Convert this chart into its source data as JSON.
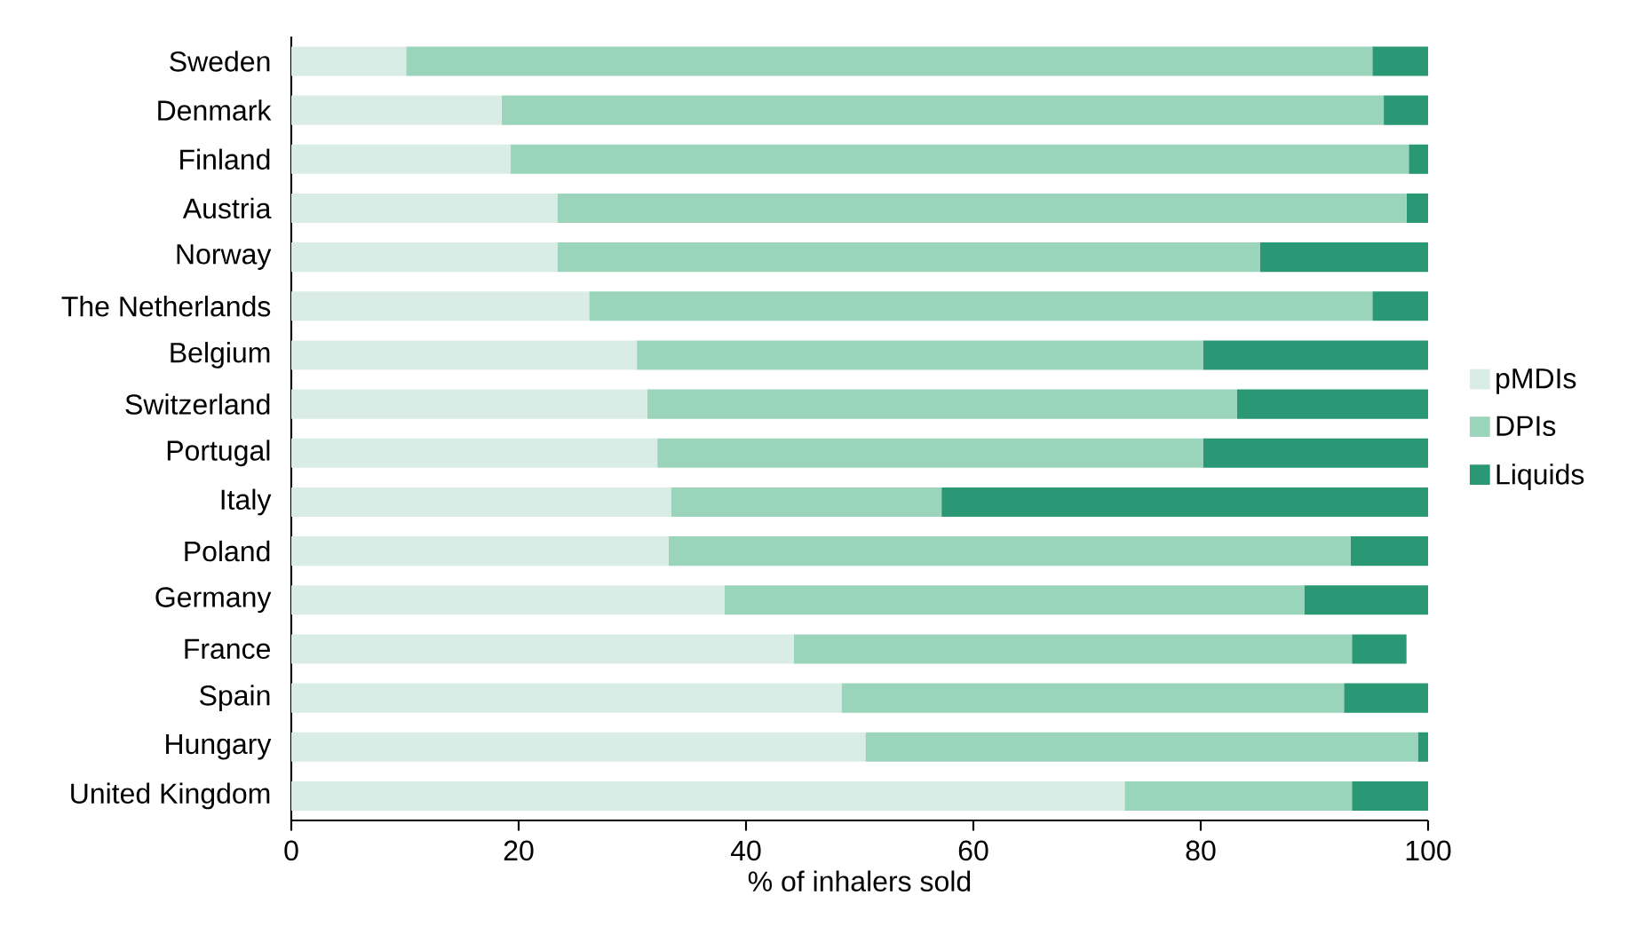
{
  "chart_data": {
    "type": "bar",
    "orientation": "horizontal",
    "stacked": true,
    "xlabel": "% of inhalers sold",
    "categories": [
      "Sweden",
      "Denmark",
      "Finland",
      "Austria",
      "Norway",
      "The Netherlands",
      "Belgium",
      "Switzerland",
      "Portugal",
      "Italy",
      "Poland",
      "Germany",
      "France",
      "Spain",
      "Hungary",
      "United Kingdom"
    ],
    "series": [
      {
        "name": "pMDIs",
        "color": "#d9ede6",
        "values": [
          10.1,
          18.5,
          19.3,
          23.4,
          23.4,
          26.2,
          30.4,
          31.3,
          32.2,
          33.4,
          33.2,
          38.1,
          44.2,
          48.4,
          50.5,
          73.3
        ]
      },
      {
        "name": "DPIs",
        "color": "#9ad4bb",
        "values": [
          85.0,
          77.6,
          79.0,
          74.7,
          61.8,
          68.9,
          49.8,
          51.9,
          48.0,
          23.8,
          60.0,
          51.0,
          49.1,
          44.2,
          48.6,
          20.0
        ]
      },
      {
        "name": "Liquids",
        "color": "#2a9874",
        "values": [
          4.9,
          3.9,
          1.7,
          1.9,
          14.8,
          4.9,
          19.8,
          16.8,
          19.8,
          42.8,
          6.8,
          10.9,
          4.8,
          7.4,
          0.9,
          6.7
        ]
      }
    ],
    "xlim": [
      0,
      100
    ],
    "xticks": [
      0,
      20,
      40,
      60,
      80,
      100
    ],
    "grid": false,
    "legend": "right"
  }
}
